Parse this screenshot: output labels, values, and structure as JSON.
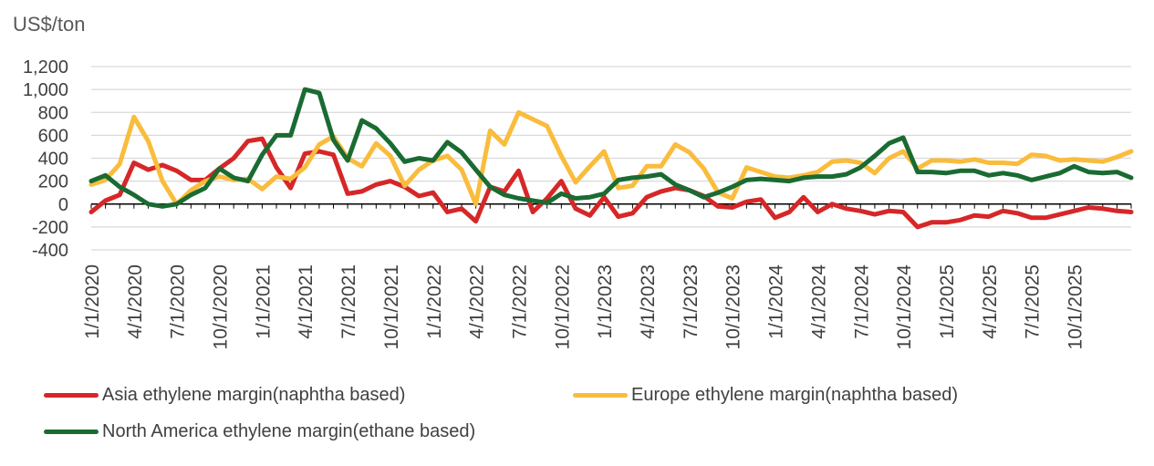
{
  "chart_data": {
    "type": "line",
    "ylabel": "US$/ton",
    "ylim": [
      -400,
      1200
    ],
    "yticks": [
      -400,
      -200,
      0,
      200,
      400,
      600,
      800,
      1000,
      1200
    ],
    "ytick_labels": [
      "-400",
      "-200",
      "0",
      "200",
      "400",
      "600",
      "800",
      "1,000",
      "1,200"
    ],
    "grid": true,
    "x_start": "1/1/2020",
    "x_labels": [
      {
        "index": 0,
        "label": "1/1/2020"
      },
      {
        "index": 3,
        "label": "4/1/2020"
      },
      {
        "index": 6,
        "label": "7/1/2020"
      },
      {
        "index": 9,
        "label": "10/1/2020"
      },
      {
        "index": 12,
        "label": "1/1/2021"
      },
      {
        "index": 15,
        "label": "4/1/2021"
      },
      {
        "index": 18,
        "label": "7/1/2021"
      },
      {
        "index": 21,
        "label": "10/1/2021"
      },
      {
        "index": 24,
        "label": "1/1/2022"
      },
      {
        "index": 27,
        "label": "4/1/2022"
      },
      {
        "index": 30,
        "label": "7/1/2022"
      },
      {
        "index": 33,
        "label": "10/1/2022"
      },
      {
        "index": 36,
        "label": "1/1/2023"
      },
      {
        "index": 39,
        "label": "4/1/2023"
      },
      {
        "index": 42,
        "label": "7/1/2023"
      },
      {
        "index": 45,
        "label": "10/1/2023"
      },
      {
        "index": 48,
        "label": "1/1/2024"
      },
      {
        "index": 51,
        "label": "4/1/2024"
      },
      {
        "index": 54,
        "label": "7/1/2024"
      },
      {
        "index": 57,
        "label": "10/1/2024"
      },
      {
        "index": 60,
        "label": "1/1/2025"
      },
      {
        "index": 63,
        "label": "4/1/2025"
      },
      {
        "index": 66,
        "label": "7/1/2025"
      },
      {
        "index": 69,
        "label": "10/1/2025"
      }
    ],
    "series": [
      {
        "name": "Asia ethylene margin(naphtha based)",
        "color": "#d62728",
        "values": [
          -70,
          30,
          80,
          360,
          300,
          340,
          290,
          210,
          210,
          310,
          400,
          550,
          570,
          320,
          140,
          440,
          460,
          430,
          90,
          110,
          170,
          200,
          150,
          70,
          100,
          -70,
          -40,
          -150,
          150,
          110,
          290,
          -70,
          50,
          200,
          -40,
          -100,
          60,
          -110,
          -80,
          60,
          110,
          140,
          120,
          70,
          -20,
          -30,
          20,
          40,
          -120,
          -70,
          60,
          -70,
          0,
          -40,
          -60,
          -90,
          -60,
          -70,
          -200,
          -160,
          -160,
          -140,
          -100,
          -110,
          -60,
          -80,
          -120,
          -120,
          -90,
          -60,
          -30,
          -40,
          -60,
          -70
        ]
      },
      {
        "name": "Europe ethylene margin(naphtha based)",
        "color": "#f9bc3c",
        "values": [
          170,
          210,
          350,
          760,
          550,
          200,
          0,
          120,
          200,
          240,
          210,
          220,
          130,
          240,
          220,
          320,
          520,
          590,
          400,
          330,
          530,
          420,
          160,
          300,
          380,
          420,
          300,
          0,
          640,
          520,
          800,
          740,
          680,
          420,
          190,
          330,
          460,
          140,
          160,
          330,
          330,
          520,
          450,
          310,
          100,
          50,
          320,
          280,
          240,
          230,
          250,
          280,
          370,
          380,
          360,
          270,
          400,
          460,
          310,
          380,
          380,
          370,
          390,
          360,
          360,
          350,
          430,
          420,
          380,
          390,
          380,
          370,
          410,
          460
        ]
      },
      {
        "name": "North America ethylene margin(ethane based)",
        "color": "#1a6b32",
        "values": [
          200,
          250,
          150,
          80,
          0,
          -20,
          0,
          80,
          140,
          310,
          230,
          200,
          430,
          600,
          600,
          1000,
          970,
          560,
          380,
          730,
          660,
          530,
          370,
          400,
          380,
          540,
          450,
          300,
          150,
          80,
          50,
          30,
          10,
          90,
          50,
          60,
          90,
          210,
          230,
          240,
          260,
          170,
          120,
          60,
          100,
          150,
          210,
          220,
          210,
          200,
          230,
          240,
          240,
          260,
          320,
          420,
          530,
          580,
          280,
          280,
          270,
          290,
          290,
          250,
          270,
          250,
          210,
          240,
          270,
          330,
          280,
          270,
          280,
          230
        ]
      }
    ]
  },
  "legend": [
    {
      "label": "Asia ethylene margin(naphtha based)",
      "color": "#d62728"
    },
    {
      "label": "Europe ethylene margin(naphtha based)",
      "color": "#f9bc3c"
    },
    {
      "label": "North America ethylene margin(ethane based)",
      "color": "#1a6b32"
    }
  ]
}
